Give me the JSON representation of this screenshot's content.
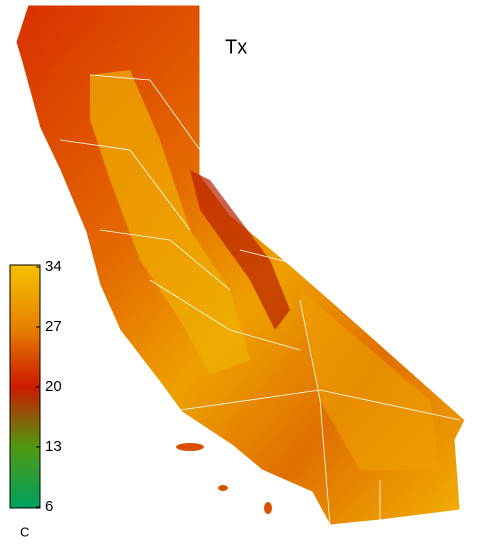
{
  "map": {
    "title": "Tx",
    "colorbar": {
      "unit": "C",
      "lim": [
        6,
        34
      ],
      "ticks": [
        34,
        27,
        20,
        13,
        6
      ],
      "colors": [
        "#f5c000",
        "#e88400",
        "#cc1a00",
        "#4f9a10",
        "#00a060"
      ]
    }
  }
}
